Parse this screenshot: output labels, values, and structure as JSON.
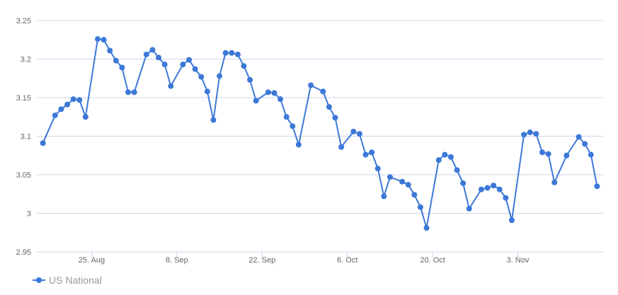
{
  "chart_data": {
    "type": "line",
    "title": "",
    "xlabel": "",
    "ylabel": "",
    "ylim": [
      2.95,
      3.25
    ],
    "yticks": [
      "2.95",
      "3",
      "3.05",
      "3.1",
      "3.15",
      "3.2",
      "3.25"
    ],
    "xticks": [
      {
        "date": "2018-08-25",
        "label": "25. Aug"
      },
      {
        "date": "2018-09-08",
        "label": "8. Sep"
      },
      {
        "date": "2018-09-22",
        "label": "22. Sep"
      },
      {
        "date": "2018-10-06",
        "label": "6. Oct"
      },
      {
        "date": "2018-10-20",
        "label": "20. Oct"
      },
      {
        "date": "2018-11-03",
        "label": "3. Nov"
      }
    ],
    "xlim": [
      "2018-08-16",
      "2018-11-17"
    ],
    "grid": "horizontal",
    "legend": "bottom-left",
    "series": [
      {
        "name": "US National",
        "color": "#3c78d8",
        "x": [
          "2018-08-17",
          "2018-08-19",
          "2018-08-20",
          "2018-08-21",
          "2018-08-22",
          "2018-08-23",
          "2018-08-24",
          "2018-08-26",
          "2018-08-27",
          "2018-08-28",
          "2018-08-29",
          "2018-08-30",
          "2018-08-31",
          "2018-09-01",
          "2018-09-03",
          "2018-09-04",
          "2018-09-05",
          "2018-09-06",
          "2018-09-07",
          "2018-09-09",
          "2018-09-10",
          "2018-09-11",
          "2018-09-12",
          "2018-09-13",
          "2018-09-14",
          "2018-09-15",
          "2018-09-16",
          "2018-09-17",
          "2018-09-18",
          "2018-09-19",
          "2018-09-20",
          "2018-09-21",
          "2018-09-23",
          "2018-09-24",
          "2018-09-25",
          "2018-09-26",
          "2018-09-27",
          "2018-09-28",
          "2018-09-30",
          "2018-10-02",
          "2018-10-03",
          "2018-10-04",
          "2018-10-05",
          "2018-10-07",
          "2018-10-08",
          "2018-10-09",
          "2018-10-10",
          "2018-10-11",
          "2018-10-12",
          "2018-10-13",
          "2018-10-15",
          "2018-10-16",
          "2018-10-17",
          "2018-10-18",
          "2018-10-19",
          "2018-10-21",
          "2018-10-22",
          "2018-10-23",
          "2018-10-24",
          "2018-10-25",
          "2018-10-26",
          "2018-10-28",
          "2018-10-29",
          "2018-10-30",
          "2018-10-31",
          "2018-11-01",
          "2018-11-02",
          "2018-11-04",
          "2018-11-05",
          "2018-11-06",
          "2018-11-07",
          "2018-11-08",
          "2018-11-09",
          "2018-11-11",
          "2018-11-13",
          "2018-11-14",
          "2018-11-15",
          "2018-11-16"
        ],
        "values": [
          3.091,
          3.127,
          3.135,
          3.141,
          3.148,
          3.147,
          3.125,
          3.226,
          3.225,
          3.211,
          3.198,
          3.189,
          3.157,
          3.157,
          3.206,
          3.212,
          3.202,
          3.193,
          3.165,
          3.193,
          3.199,
          3.187,
          3.177,
          3.158,
          3.121,
          3.178,
          3.208,
          3.208,
          3.206,
          3.191,
          3.173,
          3.146,
          3.157,
          3.156,
          3.148,
          3.125,
          3.113,
          3.089,
          3.166,
          3.158,
          3.138,
          3.124,
          3.086,
          3.106,
          3.103,
          3.076,
          3.079,
          3.058,
          3.022,
          3.047,
          3.041,
          3.037,
          3.024,
          3.008,
          2.981,
          3.069,
          3.076,
          3.073,
          3.056,
          3.039,
          3.006,
          3.031,
          3.033,
          3.036,
          3.031,
          3.02,
          2.991,
          3.102,
          3.105,
          3.103,
          3.079,
          3.077,
          3.04,
          3.075,
          3.099,
          3.09,
          3.076,
          3.035
        ]
      }
    ]
  }
}
